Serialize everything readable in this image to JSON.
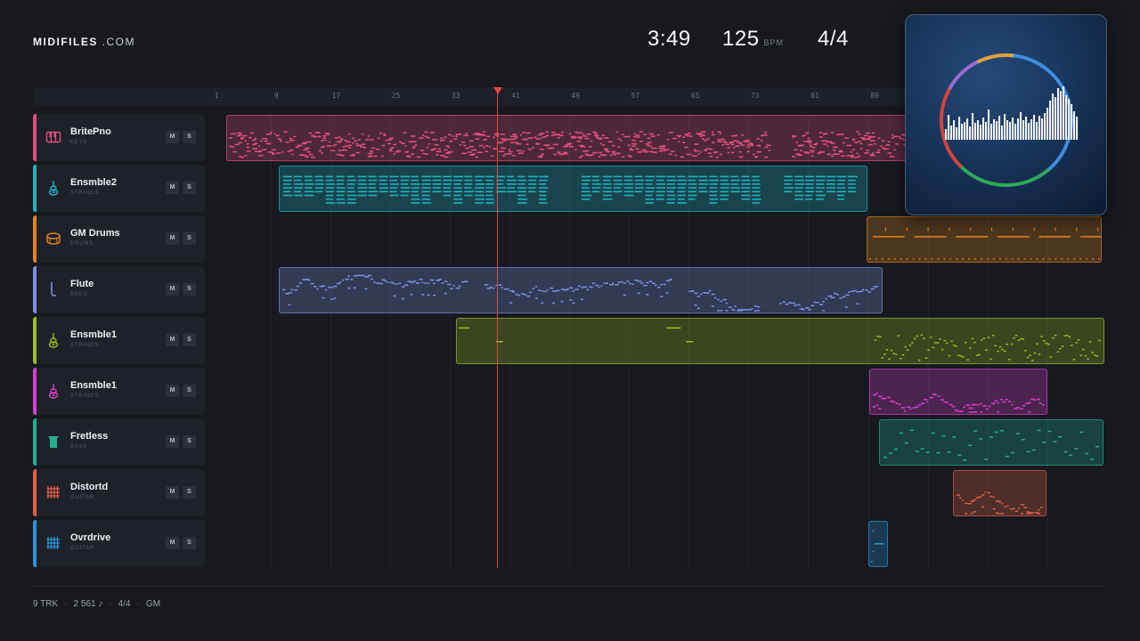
{
  "brand": {
    "name": "MIDIFILES",
    "suffix": " .COM"
  },
  "transport": {
    "time": "3:49",
    "bpm": "125",
    "bpm_unit": "BPM",
    "signature": "4/4"
  },
  "ruler": {
    "ticks": [
      "1",
      "9",
      "17",
      "25",
      "33",
      "41",
      "49",
      "57",
      "65",
      "73",
      "81",
      "89"
    ]
  },
  "playhead": {
    "bar": 38
  },
  "tracks": [
    {
      "name": "BritePno",
      "category": "KEYS",
      "color": "#e0507f",
      "icon": "piano-icon",
      "mute": "M",
      "solo": "S"
    },
    {
      "name": "Ensmble2",
      "category": "STRINGS",
      "color": "#1fb5c4",
      "icon": "strings-icon",
      "mute": "M",
      "solo": "S"
    },
    {
      "name": "GM Drums",
      "category": "DRUMS",
      "color": "#e0861e",
      "icon": "drum-icon",
      "mute": "M",
      "solo": "S"
    },
    {
      "name": "Flute",
      "category": "REED",
      "color": "#7b8fe0",
      "icon": "flute-icon",
      "mute": "M",
      "solo": "S"
    },
    {
      "name": "Ensmble1",
      "category": "STRINGS",
      "color": "#9cbc22",
      "icon": "strings-icon",
      "mute": "M",
      "solo": "S"
    },
    {
      "name": "Ensmble1",
      "category": "STRINGS",
      "color": "#d63fcf",
      "icon": "strings-icon",
      "mute": "M",
      "solo": "S"
    },
    {
      "name": "Fretless",
      "category": "BASS",
      "color": "#1fb08e",
      "icon": "bass-icon",
      "mute": "M",
      "solo": "S"
    },
    {
      "name": "Distortd",
      "category": "GUITAR",
      "color": "#e06048",
      "icon": "guitar-icon",
      "mute": "M",
      "solo": "S"
    },
    {
      "name": "Ovrdrive",
      "category": "GUITAR",
      "color": "#2a95d8",
      "icon": "guitar-icon",
      "mute": "M",
      "solo": "S"
    }
  ],
  "footer": {
    "tracks": "9 TRK",
    "notes": "2 561 ♪",
    "signature": "4/4",
    "standard": "GM"
  },
  "visualizer": {
    "ring_colors": [
      "#3b8ee0",
      "#2fa85a",
      "#d2453c",
      "#9a6cd0",
      "#e0a23a"
    ]
  }
}
